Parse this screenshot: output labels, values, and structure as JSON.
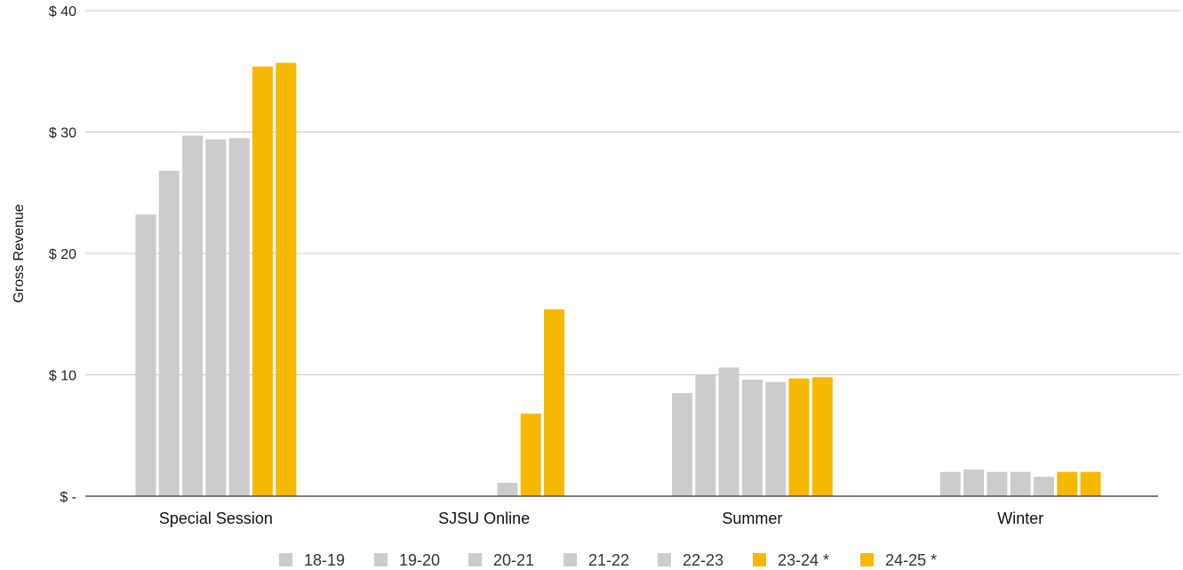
{
  "chart_data": {
    "type": "bar",
    "ylabel": "Gross Revenue",
    "xlabel": "",
    "ylim": [
      0,
      40
    ],
    "yticks": [
      {
        "value": 0,
        "label": "$ -"
      },
      {
        "value": 10,
        "label": "$ 10"
      },
      {
        "value": 20,
        "label": "$ 20"
      },
      {
        "value": 30,
        "label": "$ 30"
      },
      {
        "value": 40,
        "label": "$ 40"
      }
    ],
    "grid": true,
    "legend_position": "bottom",
    "categories": [
      "Special Session",
      "SJSU Online",
      "Summer",
      "Winter"
    ],
    "series": [
      {
        "name": "18-19",
        "color": "#cccccc",
        "values": [
          23.2,
          0,
          8.5,
          2.0
        ]
      },
      {
        "name": "19-20",
        "color": "#cccccc",
        "values": [
          26.8,
          0,
          10.0,
          2.2
        ]
      },
      {
        "name": "20-21",
        "color": "#cccccc",
        "values": [
          29.7,
          0,
          10.6,
          2.0
        ]
      },
      {
        "name": "21-22",
        "color": "#cccccc",
        "values": [
          29.4,
          0,
          9.6,
          2.0
        ]
      },
      {
        "name": "22-23",
        "color": "#cccccc",
        "values": [
          29.5,
          1.1,
          9.4,
          1.6
        ]
      },
      {
        "name": "23-24 *",
        "color": "#f6b900",
        "values": [
          35.4,
          6.8,
          9.7,
          2.0
        ]
      },
      {
        "name": "24-25 *",
        "color": "#f6b900",
        "values": [
          35.7,
          15.4,
          9.8,
          2.0
        ]
      }
    ]
  }
}
